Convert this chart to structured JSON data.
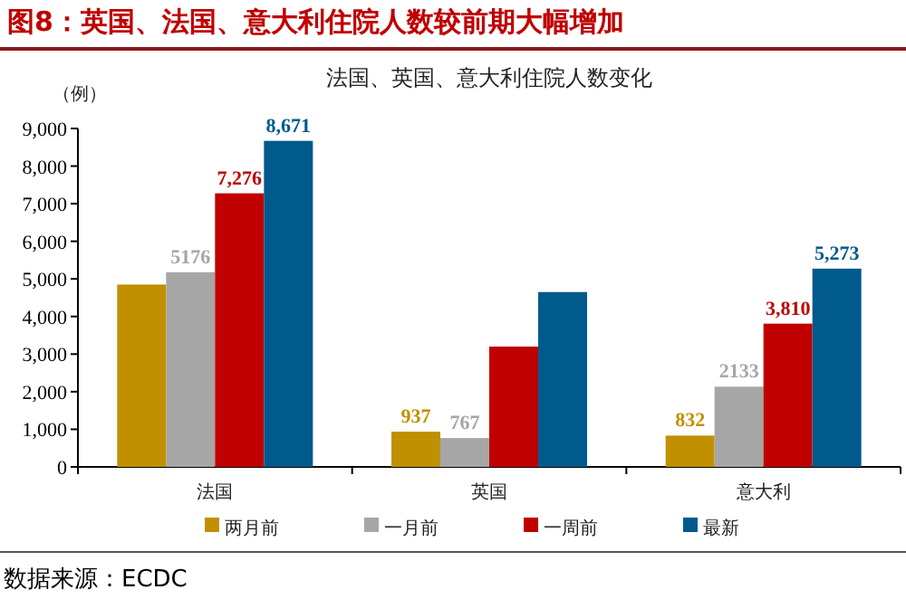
{
  "chart_data": {
    "type": "bar",
    "title": "图8：英国、法国、意大利住院人数较前期大幅增加",
    "subtitle": "法国、英国、意大利住院人数变化",
    "ylabel": "（例）",
    "categories": [
      "法国",
      "英国",
      "意大利"
    ],
    "series": [
      {
        "name": "两月前",
        "color": "#c09000",
        "values": [
          4850,
          937,
          832
        ],
        "value_labels": [
          null,
          "937",
          "832"
        ]
      },
      {
        "name": "一月前",
        "color": "#a6a6a6",
        "values": [
          5176,
          767,
          2133
        ],
        "value_labels": [
          "5176",
          "767",
          "2133"
        ]
      },
      {
        "name": "一周前",
        "color": "#c00000",
        "values": [
          7276,
          3200,
          3810
        ],
        "value_labels": [
          "7,276",
          null,
          "3,810"
        ]
      },
      {
        "name": "最新",
        "color": "#005a8c",
        "values": [
          8671,
          4650,
          5273
        ],
        "value_labels": [
          "8,671",
          null,
          "5,273"
        ]
      }
    ],
    "ylim": [
      0,
      9000
    ],
    "yticks": [
      0,
      {
        "value": 1000,
        "label": "1,000"
      },
      {
        "value": 2000,
        "label": "2,000"
      },
      {
        "value": 3000,
        "label": "3,000"
      },
      {
        "value": 4000,
        "label": "4,000"
      },
      {
        "value": 5000,
        "label": "5,000"
      },
      {
        "value": 6000,
        "label": "6,000"
      },
      {
        "value": 7000,
        "label": "7,000"
      },
      {
        "value": 8000,
        "label": "8,000"
      },
      {
        "value": 9000,
        "label": "9,000"
      }
    ],
    "legend": "bottom",
    "annotations": [
      "数据来源：ECDC"
    ]
  }
}
